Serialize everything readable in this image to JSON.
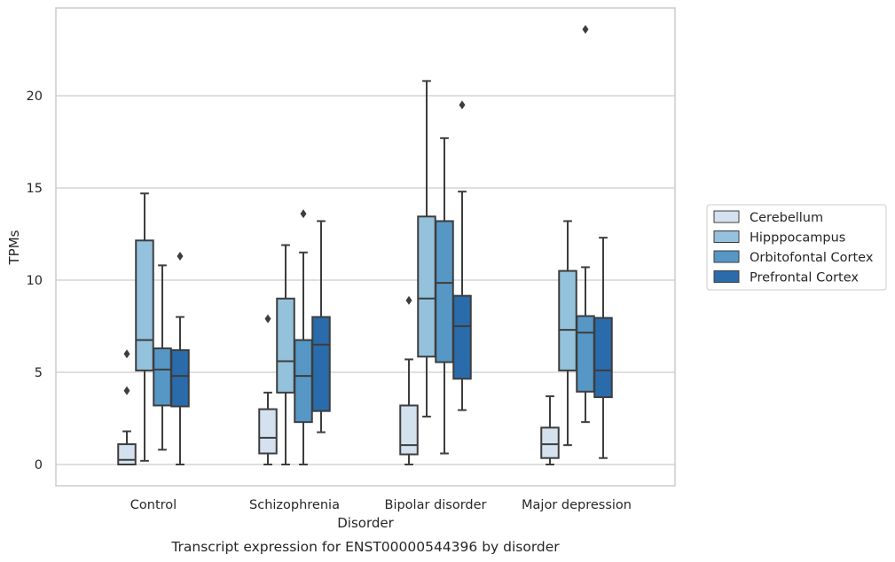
{
  "chart_data": {
    "type": "box",
    "caption": "Transcript expression for ENST00000544396 by disorder",
    "xlabel": "Disorder",
    "ylabel": "TPMs",
    "ylim": [
      -1.1,
      24.8
    ],
    "yticks": [
      0,
      5,
      10,
      15,
      20
    ],
    "grid": "horizontal",
    "legend_position": "right",
    "categories": [
      "Control",
      "Schizophrenia",
      "Bipolar disorder",
      "Major depression"
    ],
    "series": [
      {
        "name": "Cerebellum",
        "color": "#d4e2ef",
        "boxes": [
          {
            "whislo": 0.0,
            "q1": 0.0,
            "med": 0.25,
            "q3": 1.1,
            "whishi": 1.8,
            "fliers": [
              4.0,
              6.0
            ]
          },
          {
            "whislo": 0.0,
            "q1": 0.6,
            "med": 1.45,
            "q3": 3.0,
            "whishi": 3.9,
            "fliers": [
              7.9
            ]
          },
          {
            "whislo": 0.0,
            "q1": 0.55,
            "med": 1.05,
            "q3": 3.2,
            "whishi": 5.7,
            "fliers": [
              8.9
            ]
          },
          {
            "whislo": 0.0,
            "q1": 0.35,
            "med": 1.1,
            "q3": 2.0,
            "whishi": 3.7,
            "fliers": []
          }
        ]
      },
      {
        "name": "Hipppocampus",
        "color": "#94c2dc",
        "boxes": [
          {
            "whislo": 0.2,
            "q1": 5.1,
            "med": 6.75,
            "q3": 12.15,
            "whishi": 14.7,
            "fliers": []
          },
          {
            "whislo": 0.0,
            "q1": 3.9,
            "med": 5.6,
            "q3": 9.0,
            "whishi": 11.9,
            "fliers": []
          },
          {
            "whislo": 2.6,
            "q1": 5.85,
            "med": 9.0,
            "q3": 13.45,
            "whishi": 20.8,
            "fliers": []
          },
          {
            "whislo": 1.05,
            "q1": 5.1,
            "med": 7.3,
            "q3": 10.5,
            "whishi": 13.2,
            "fliers": []
          }
        ]
      },
      {
        "name": "Orbitofontal Cortex",
        "color": "#5697c5",
        "boxes": [
          {
            "whislo": 0.8,
            "q1": 3.2,
            "med": 5.15,
            "q3": 6.3,
            "whishi": 10.8,
            "fliers": []
          },
          {
            "whislo": 0.0,
            "q1": 2.3,
            "med": 4.8,
            "q3": 6.75,
            "whishi": 11.5,
            "fliers": [
              13.6
            ]
          },
          {
            "whislo": 0.6,
            "q1": 5.55,
            "med": 9.85,
            "q3": 13.2,
            "whishi": 17.7,
            "fliers": []
          },
          {
            "whislo": 2.3,
            "q1": 3.95,
            "med": 7.15,
            "q3": 8.05,
            "whishi": 10.7,
            "fliers": [
              23.6
            ]
          }
        ]
      },
      {
        "name": "Prefrontal Cortex",
        "color": "#2a6bab",
        "boxes": [
          {
            "whislo": 0.0,
            "q1": 3.15,
            "med": 4.8,
            "q3": 6.2,
            "whishi": 8.0,
            "fliers": [
              11.3
            ]
          },
          {
            "whislo": 1.75,
            "q1": 2.9,
            "med": 6.5,
            "q3": 8.0,
            "whishi": 13.2,
            "fliers": []
          },
          {
            "whislo": 2.95,
            "q1": 4.65,
            "med": 7.5,
            "q3": 9.15,
            "whishi": 14.8,
            "fliers": [
              19.5
            ]
          },
          {
            "whislo": 0.35,
            "q1": 3.65,
            "med": 5.1,
            "q3": 7.95,
            "whishi": 12.3,
            "fliers": []
          }
        ]
      }
    ]
  }
}
